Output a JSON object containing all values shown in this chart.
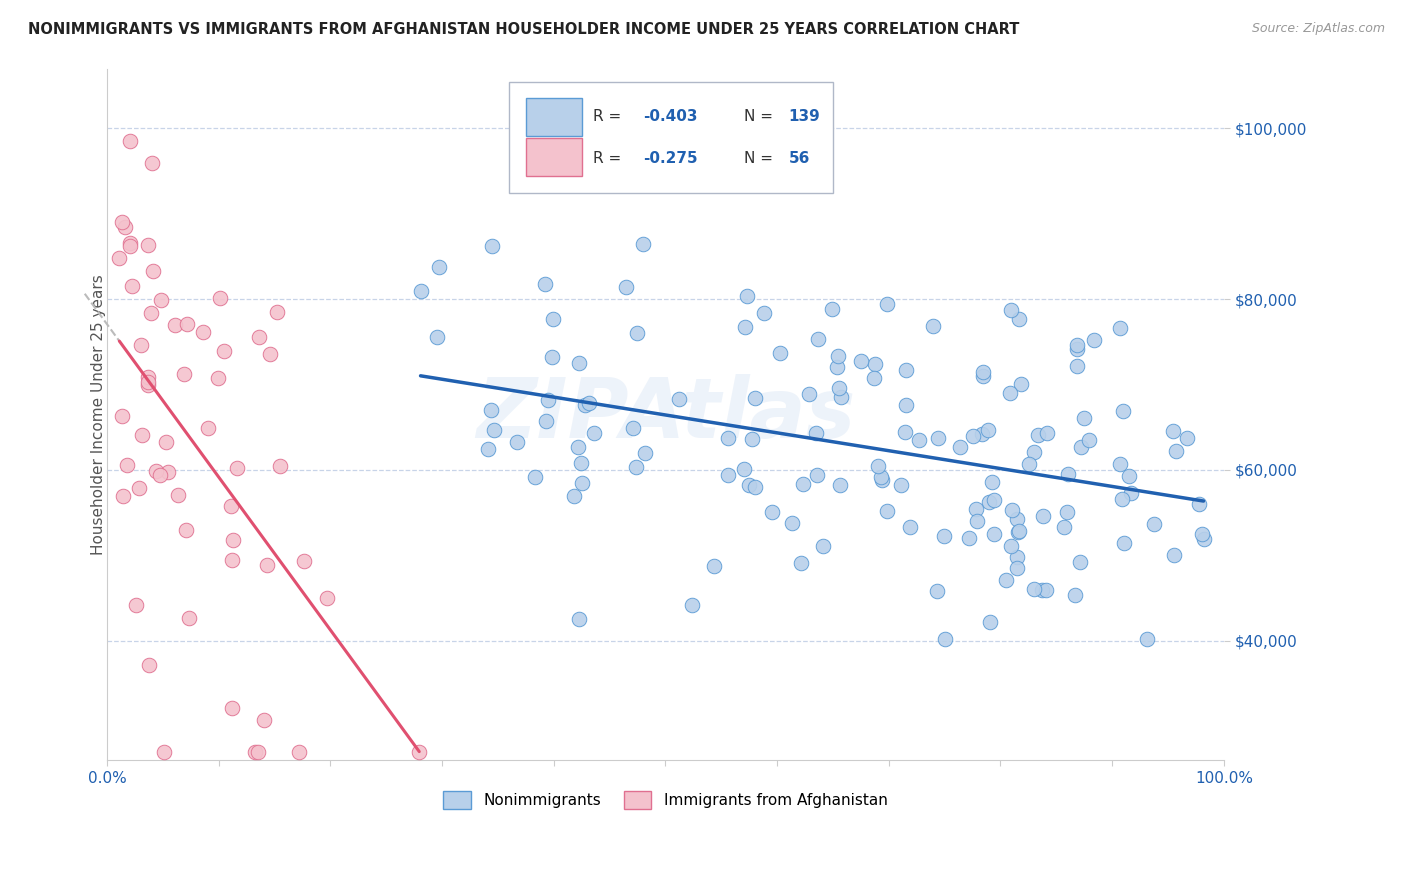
{
  "title": "NONIMMIGRANTS VS IMMIGRANTS FROM AFGHANISTAN HOUSEHOLDER INCOME UNDER 25 YEARS CORRELATION CHART",
  "source": "Source: ZipAtlas.com",
  "ylabel": "Householder Income Under 25 years",
  "ytick_values": [
    40000,
    60000,
    80000,
    100000
  ],
  "xlim": [
    0.0,
    1.0
  ],
  "ylim": [
    26000,
    107000
  ],
  "legend_r1": "-0.403",
  "legend_n1": "139",
  "legend_r2": "-0.275",
  "legend_n2": "56",
  "nonimmigrant_fill": "#b8d0ea",
  "nonimmigrant_edge": "#5b9bd5",
  "immigrant_fill": "#f4c2cd",
  "immigrant_edge": "#e07090",
  "trend_blue": "#2060b0",
  "trend_pink": "#e05070",
  "trend_dashed_color": "#bbbbbb",
  "background_color": "#ffffff",
  "grid_color": "#c8d4e8",
  "title_color": "#222222",
  "axis_blue": "#2060b0",
  "watermark": "ZIPAtlas",
  "ni_seed": 101,
  "im_seed": 202
}
